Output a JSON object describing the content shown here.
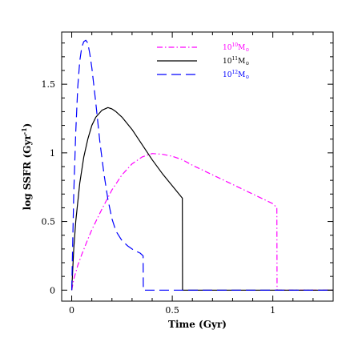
{
  "chart_data": {
    "type": "line",
    "xlabel": "Time (Gyr)",
    "ylabel_main": "log SSFR (Gyr",
    "ylabel_sup": "-1",
    "ylabel_close": ")",
    "xlim": [
      -0.05,
      1.3
    ],
    "ylim": [
      -0.08,
      1.88
    ],
    "x_ticks": [
      0,
      0.5,
      1
    ],
    "x_tick_labels": [
      "0",
      "0.5",
      "1"
    ],
    "y_ticks": [
      0,
      0.5,
      1,
      1.5
    ],
    "y_tick_labels": [
      "0",
      "0.5",
      "1",
      "1.5"
    ],
    "legend_position": "top-center",
    "series": [
      {
        "legend_base": "10",
        "legend_sup": "10",
        "legend_sub": "M",
        "legend_sun": "⊙",
        "color": "#ff00ff",
        "style": "dashdot",
        "x": [
          0.0,
          0.01,
          0.03,
          0.05,
          0.08,
          0.1,
          0.15,
          0.2,
          0.25,
          0.3,
          0.35,
          0.4,
          0.45,
          0.5,
          0.55,
          0.6,
          0.7,
          0.8,
          0.9,
          1.0,
          1.02,
          1.021,
          1.3
        ],
        "y": [
          0.0,
          0.08,
          0.18,
          0.26,
          0.37,
          0.44,
          0.59,
          0.73,
          0.84,
          0.92,
          0.97,
          0.995,
          0.99,
          0.975,
          0.95,
          0.91,
          0.84,
          0.77,
          0.7,
          0.63,
          0.6,
          0.0,
          0.0
        ]
      },
      {
        "legend_base": "10",
        "legend_sup": "11",
        "legend_sub": "M",
        "legend_sun": "⊙",
        "color": "#000000",
        "style": "solid",
        "x": [
          0.0,
          0.01,
          0.02,
          0.04,
          0.06,
          0.08,
          0.1,
          0.12,
          0.15,
          0.18,
          0.2,
          0.22,
          0.25,
          0.3,
          0.35,
          0.4,
          0.45,
          0.5,
          0.55,
          0.551,
          1.3
        ],
        "y": [
          0.0,
          0.3,
          0.5,
          0.78,
          0.97,
          1.1,
          1.2,
          1.26,
          1.31,
          1.33,
          1.32,
          1.3,
          1.26,
          1.17,
          1.06,
          0.95,
          0.85,
          0.76,
          0.67,
          0.0,
          0.0
        ]
      },
      {
        "legend_base": "10",
        "legend_sup": "12",
        "legend_sub": "M",
        "legend_sun": "⊙",
        "color": "#0000ff",
        "style": "dashed",
        "x": [
          0.0,
          0.01,
          0.02,
          0.03,
          0.04,
          0.05,
          0.06,
          0.07,
          0.08,
          0.09,
          0.1,
          0.12,
          0.14,
          0.16,
          0.18,
          0.2,
          0.22,
          0.25,
          0.28,
          0.31,
          0.34,
          0.355,
          0.356,
          1.3
        ],
        "y": [
          0.0,
          0.7,
          1.15,
          1.48,
          1.67,
          1.77,
          1.81,
          1.82,
          1.8,
          1.72,
          1.62,
          1.36,
          1.08,
          0.85,
          0.66,
          0.52,
          0.43,
          0.36,
          0.32,
          0.29,
          0.27,
          0.25,
          0.0,
          0.0
        ]
      }
    ]
  }
}
